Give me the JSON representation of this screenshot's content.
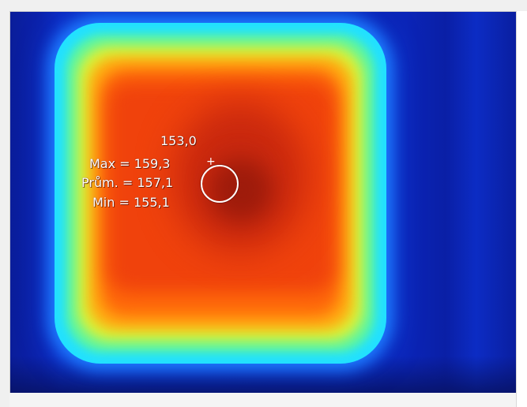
{
  "thermal_view": {
    "cursor_value": "153,0",
    "roi_stats": {
      "max_label": "Max = 159,3",
      "avg_label": "Prům. = 157,1",
      "min_label": "Min = 155,1"
    },
    "palette": {
      "cold": "#0b24b2",
      "cyan": "#22e1ff",
      "green": "#57f5a6",
      "yellow": "#d6f53a",
      "orange": "#ffb313",
      "red": "#f0420c",
      "hottest": "#9e1b0b"
    }
  }
}
